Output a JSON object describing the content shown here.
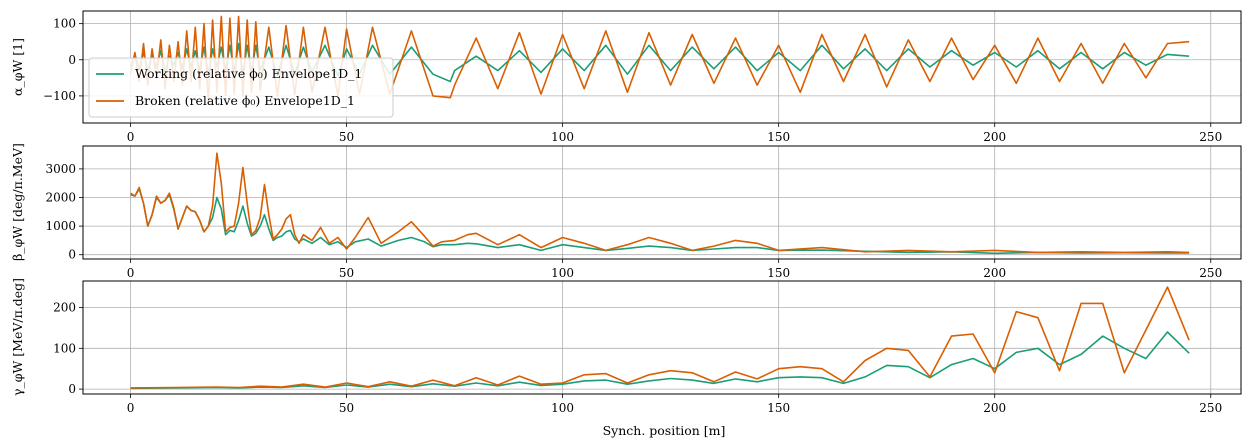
{
  "figure": {
    "xlabel": "Synch. position [m]"
  },
  "chart_data": [
    {
      "type": "line",
      "ylabel": "α_φW [1]",
      "xlim": [
        -11,
        257
      ],
      "ylim": [
        -175,
        135
      ],
      "xticks": [
        0,
        50,
        100,
        150,
        200,
        250
      ],
      "yticks": [
        -100,
        0,
        100
      ],
      "grid": true,
      "legend_position": "lower-left",
      "series": [
        {
          "name": "Working (relative ϕ₀) Envelope1D_1",
          "color": "#1b9e77",
          "x": [
            0,
            1,
            2,
            3,
            4,
            5,
            6,
            7,
            8,
            9,
            10,
            11,
            12,
            13,
            14,
            15,
            16,
            17,
            18,
            19,
            20,
            21,
            22,
            23,
            24,
            25,
            26,
            27,
            28,
            29,
            30,
            32,
            34,
            36,
            38,
            40,
            42,
            45,
            48,
            50,
            53,
            56,
            60,
            65,
            70,
            74,
            75,
            80,
            85,
            90,
            95,
            100,
            105,
            110,
            115,
            120,
            125,
            130,
            135,
            140,
            145,
            150,
            155,
            160,
            165,
            170,
            175,
            180,
            185,
            190,
            195,
            200,
            205,
            210,
            215,
            220,
            225,
            230,
            235,
            240,
            245
          ],
          "y": [
            -20,
            15,
            -25,
            20,
            -30,
            15,
            -20,
            25,
            -35,
            10,
            -15,
            20,
            -25,
            30,
            -20,
            25,
            -30,
            35,
            -40,
            30,
            -20,
            35,
            -30,
            40,
            -35,
            45,
            -40,
            40,
            -35,
            40,
            -30,
            35,
            -45,
            40,
            -40,
            35,
            -35,
            40,
            -45,
            30,
            -40,
            40,
            -40,
            35,
            -40,
            -60,
            -30,
            10,
            -30,
            25,
            -35,
            30,
            -30,
            40,
            -40,
            40,
            -30,
            35,
            -25,
            35,
            -30,
            20,
            -30,
            40,
            -25,
            30,
            -30,
            30,
            -20,
            25,
            -15,
            20,
            -20,
            25,
            -25,
            20,
            -25,
            20,
            -15,
            15,
            10
          ]
        },
        {
          "name": "Broken (relative ϕ₀) Envelope1D_1",
          "color": "#d95f02",
          "x": [
            0,
            1,
            2,
            3,
            4,
            5,
            6,
            7,
            8,
            9,
            10,
            11,
            12,
            13,
            14,
            15,
            16,
            17,
            18,
            19,
            20,
            21,
            22,
            23,
            24,
            25,
            26,
            27,
            28,
            29,
            30,
            32,
            34,
            36,
            38,
            40,
            42,
            45,
            48,
            50,
            53,
            56,
            60,
            65,
            70,
            74,
            75,
            80,
            85,
            90,
            95,
            100,
            105,
            110,
            115,
            120,
            125,
            130,
            135,
            140,
            145,
            150,
            155,
            160,
            165,
            170,
            175,
            180,
            185,
            190,
            195,
            200,
            205,
            210,
            215,
            220,
            225,
            230,
            235,
            240,
            245
          ],
          "y": [
            -40,
            20,
            -60,
            45,
            -70,
            30,
            -50,
            55,
            -80,
            40,
            -60,
            50,
            -70,
            80,
            -60,
            90,
            -80,
            100,
            -120,
            110,
            -90,
            120,
            -100,
            115,
            -95,
            120,
            -100,
            110,
            -90,
            105,
            -85,
            90,
            -100,
            95,
            -95,
            90,
            -90,
            90,
            -100,
            85,
            -95,
            90,
            -95,
            80,
            -100,
            -105,
            -70,
            60,
            -80,
            75,
            -95,
            70,
            -80,
            80,
            -90,
            75,
            -70,
            70,
            -65,
            60,
            -70,
            40,
            -90,
            70,
            -60,
            70,
            -75,
            55,
            -60,
            60,
            -55,
            40,
            -65,
            60,
            -60,
            45,
            -65,
            45,
            -50,
            45,
            50
          ]
        }
      ]
    },
    {
      "type": "line",
      "ylabel": "β_φW [deg/π.MeV]",
      "xlim": [
        -11,
        257
      ],
      "ylim": [
        -150,
        3800
      ],
      "xticks": [
        0,
        50,
        100,
        150,
        200,
        250
      ],
      "yticks": [
        0,
        1000,
        2000,
        3000
      ],
      "grid": true,
      "series": [
        {
          "name": "Working (relative ϕ₀) Envelope1D_1",
          "color": "#1b9e77",
          "x": [
            0,
            1,
            2,
            3,
            4,
            5,
            6,
            7,
            8,
            9,
            10,
            11,
            12,
            13,
            14,
            15,
            16,
            17,
            18,
            19,
            20,
            21,
            22,
            23,
            24,
            25,
            26,
            27,
            28,
            29,
            30,
            31,
            32,
            33,
            34,
            35,
            36,
            37,
            38,
            39,
            40,
            42,
            44,
            46,
            48,
            50,
            52,
            55,
            58,
            60,
            62,
            65,
            68,
            70,
            72,
            75,
            78,
            80,
            85,
            90,
            95,
            100,
            105,
            110,
            115,
            120,
            125,
            130,
            135,
            140,
            145,
            150,
            160,
            170,
            180,
            190,
            200,
            210,
            220,
            230,
            240,
            245
          ],
          "y": [
            2100,
            2050,
            2300,
            1800,
            1000,
            1400,
            2000,
            1800,
            1900,
            2100,
            1600,
            900,
            1300,
            1700,
            1550,
            1500,
            1200,
            800,
            1000,
            1300,
            2000,
            1600,
            700,
            850,
            800,
            1200,
            1700,
            1100,
            650,
            750,
            1000,
            1400,
            900,
            500,
            600,
            650,
            800,
            850,
            550,
            450,
            550,
            400,
            600,
            350,
            450,
            250,
            450,
            550,
            300,
            400,
            500,
            600,
            450,
            280,
            350,
            350,
            400,
            380,
            250,
            350,
            150,
            350,
            250,
            150,
            220,
            300,
            250,
            150,
            200,
            250,
            250,
            150,
            160,
            120,
            80,
            100,
            50,
            80,
            60,
            70,
            60,
            60
          ]
        },
        {
          "name": "Broken (relative ϕ₀) Envelope1D_1",
          "color": "#d95f02",
          "x": [
            0,
            1,
            2,
            3,
            4,
            5,
            6,
            7,
            8,
            9,
            10,
            11,
            12,
            13,
            14,
            15,
            16,
            17,
            18,
            19,
            20,
            21,
            22,
            23,
            24,
            25,
            26,
            27,
            28,
            29,
            30,
            31,
            32,
            33,
            34,
            35,
            36,
            37,
            38,
            39,
            40,
            42,
            44,
            46,
            48,
            50,
            52,
            55,
            58,
            60,
            62,
            65,
            68,
            70,
            72,
            75,
            78,
            80,
            85,
            90,
            95,
            100,
            105,
            110,
            115,
            120,
            125,
            130,
            135,
            140,
            145,
            150,
            160,
            170,
            180,
            190,
            200,
            210,
            220,
            230,
            240,
            245
          ],
          "y": [
            2150,
            2050,
            2350,
            1800,
            1000,
            1400,
            2050,
            1800,
            1900,
            2150,
            1650,
            900,
            1300,
            1700,
            1550,
            1500,
            1200,
            800,
            1000,
            1700,
            3550,
            2500,
            800,
            950,
            1000,
            1800,
            3050,
            1800,
            700,
            850,
            1300,
            2450,
            1400,
            550,
            700,
            900,
            1250,
            1400,
            700,
            400,
            700,
            500,
            950,
            400,
            600,
            200,
            600,
            1300,
            400,
            600,
            800,
            1150,
            650,
            300,
            450,
            500,
            700,
            750,
            350,
            700,
            250,
            600,
            400,
            150,
            350,
            600,
            400,
            150,
            300,
            500,
            400,
            150,
            250,
            100,
            150,
            100,
            150,
            80,
            100,
            80,
            100,
            80
          ]
        }
      ]
    },
    {
      "type": "line",
      "ylabel": "γ_φW [MeV/π.deg]",
      "xlabel": "Synch. position [m]",
      "xlim": [
        -11,
        257
      ],
      "ylim": [
        -12,
        265
      ],
      "xticks": [
        0,
        50,
        100,
        150,
        200,
        250
      ],
      "yticks": [
        0,
        100,
        200
      ],
      "grid": true,
      "series": [
        {
          "name": "Working (relative ϕ₀) Envelope1D_1",
          "color": "#1b9e77",
          "x": [
            0,
            10,
            20,
            25,
            30,
            35,
            40,
            45,
            50,
            55,
            60,
            65,
            70,
            75,
            80,
            85,
            90,
            95,
            100,
            105,
            110,
            115,
            120,
            125,
            130,
            135,
            140,
            145,
            150,
            155,
            160,
            165,
            170,
            175,
            180,
            185,
            190,
            195,
            200,
            205,
            210,
            215,
            220,
            225,
            230,
            235,
            240,
            245
          ],
          "y": [
            2,
            3,
            4,
            3,
            5,
            4,
            8,
            4,
            10,
            5,
            12,
            6,
            13,
            7,
            15,
            8,
            17,
            9,
            12,
            20,
            22,
            12,
            20,
            26,
            22,
            14,
            25,
            18,
            28,
            30,
            28,
            14,
            30,
            58,
            55,
            28,
            60,
            75,
            50,
            90,
            100,
            60,
            85,
            130,
            100,
            75,
            140,
            88
          ]
        },
        {
          "name": "Broken (relative ϕ₀) Envelope1D_1",
          "color": "#d95f02",
          "x": [
            0,
            10,
            20,
            25,
            30,
            35,
            40,
            45,
            50,
            55,
            60,
            65,
            70,
            75,
            80,
            85,
            90,
            95,
            100,
            105,
            110,
            115,
            120,
            125,
            130,
            135,
            140,
            145,
            150,
            155,
            160,
            165,
            170,
            175,
            180,
            185,
            190,
            195,
            200,
            205,
            210,
            215,
            220,
            225,
            230,
            235,
            240,
            245
          ],
          "y": [
            3,
            4,
            5,
            4,
            7,
            5,
            12,
            5,
            15,
            6,
            18,
            7,
            22,
            8,
            28,
            10,
            32,
            12,
            15,
            35,
            38,
            15,
            35,
            45,
            40,
            18,
            42,
            25,
            50,
            55,
            50,
            18,
            70,
            100,
            95,
            30,
            130,
            135,
            40,
            190,
            175,
            45,
            210,
            210,
            40,
            145,
            250,
            120
          ]
        }
      ]
    }
  ]
}
